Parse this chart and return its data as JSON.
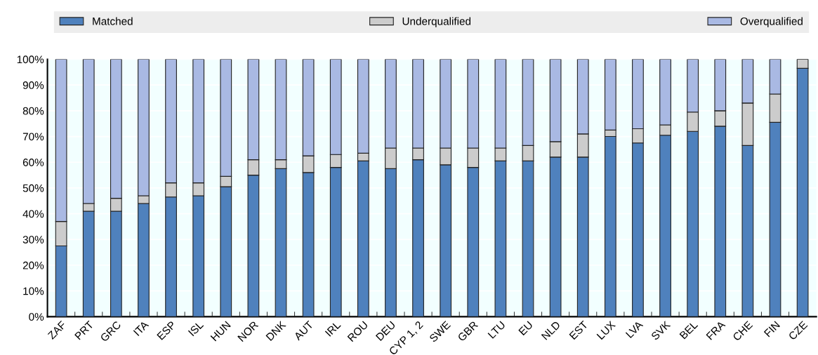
{
  "chart_data": {
    "type": "bar",
    "stacked": true,
    "categories": [
      "ZAF",
      "PRT",
      "GRC",
      "ITA",
      "ESP",
      "ISL",
      "HUN",
      "NOR",
      "DNK",
      "AUT",
      "IRL",
      "ROU",
      "DEU",
      "CYP 1, 2",
      "SWE",
      "GBR",
      "LTU",
      "EU",
      "NLD",
      "EST",
      "LUX",
      "LVA",
      "SVK",
      "BEL",
      "FRA",
      "CHE",
      "FIN",
      "CZE"
    ],
    "series": [
      {
        "name": "Matched",
        "color": "#4f81bd",
        "values": [
          27.5,
          41,
          41,
          44,
          46.5,
          47,
          50.5,
          55,
          57.5,
          56,
          58,
          60.5,
          57.5,
          61,
          59,
          58,
          60.5,
          60.5,
          62,
          62,
          70,
          67.5,
          70.5,
          72,
          74,
          66.5,
          75.5,
          96.5
        ]
      },
      {
        "name": "Underqualified",
        "color": "#cccccc",
        "values": [
          9.5,
          3,
          5,
          3,
          5.5,
          5,
          4,
          6,
          3.5,
          6.5,
          5,
          3,
          8,
          4.5,
          6.5,
          7.5,
          5,
          6,
          6,
          9,
          2.5,
          5.5,
          4,
          7.5,
          6,
          16.5,
          11,
          3.5
        ]
      },
      {
        "name": "Overqualified",
        "color": "#a9b9e3",
        "values": [
          63,
          56,
          54,
          53,
          48,
          48,
          45.5,
          39,
          39,
          37.5,
          37,
          36.5,
          34.5,
          34.5,
          34.5,
          34.5,
          34.5,
          33.5,
          32,
          29,
          27.5,
          27,
          25.5,
          20.5,
          20,
          17,
          13.5,
          null
        ]
      }
    ],
    "ylim": [
      0,
      100
    ],
    "yticks": [
      {
        "value": 0,
        "label": "0%"
      },
      {
        "value": 10,
        "label": "10%"
      },
      {
        "value": 20,
        "label": "20%"
      },
      {
        "value": 30,
        "label": "30%"
      },
      {
        "value": 40,
        "label": "40%"
      },
      {
        "value": 50,
        "label": "50%"
      },
      {
        "value": 60,
        "label": "60%"
      },
      {
        "value": 70,
        "label": "70%"
      },
      {
        "value": 80,
        "label": "80%"
      },
      {
        "value": 90,
        "label": "90%"
      },
      {
        "value": 100,
        "label": "100%"
      }
    ],
    "grid": "y",
    "legend": "top"
  }
}
